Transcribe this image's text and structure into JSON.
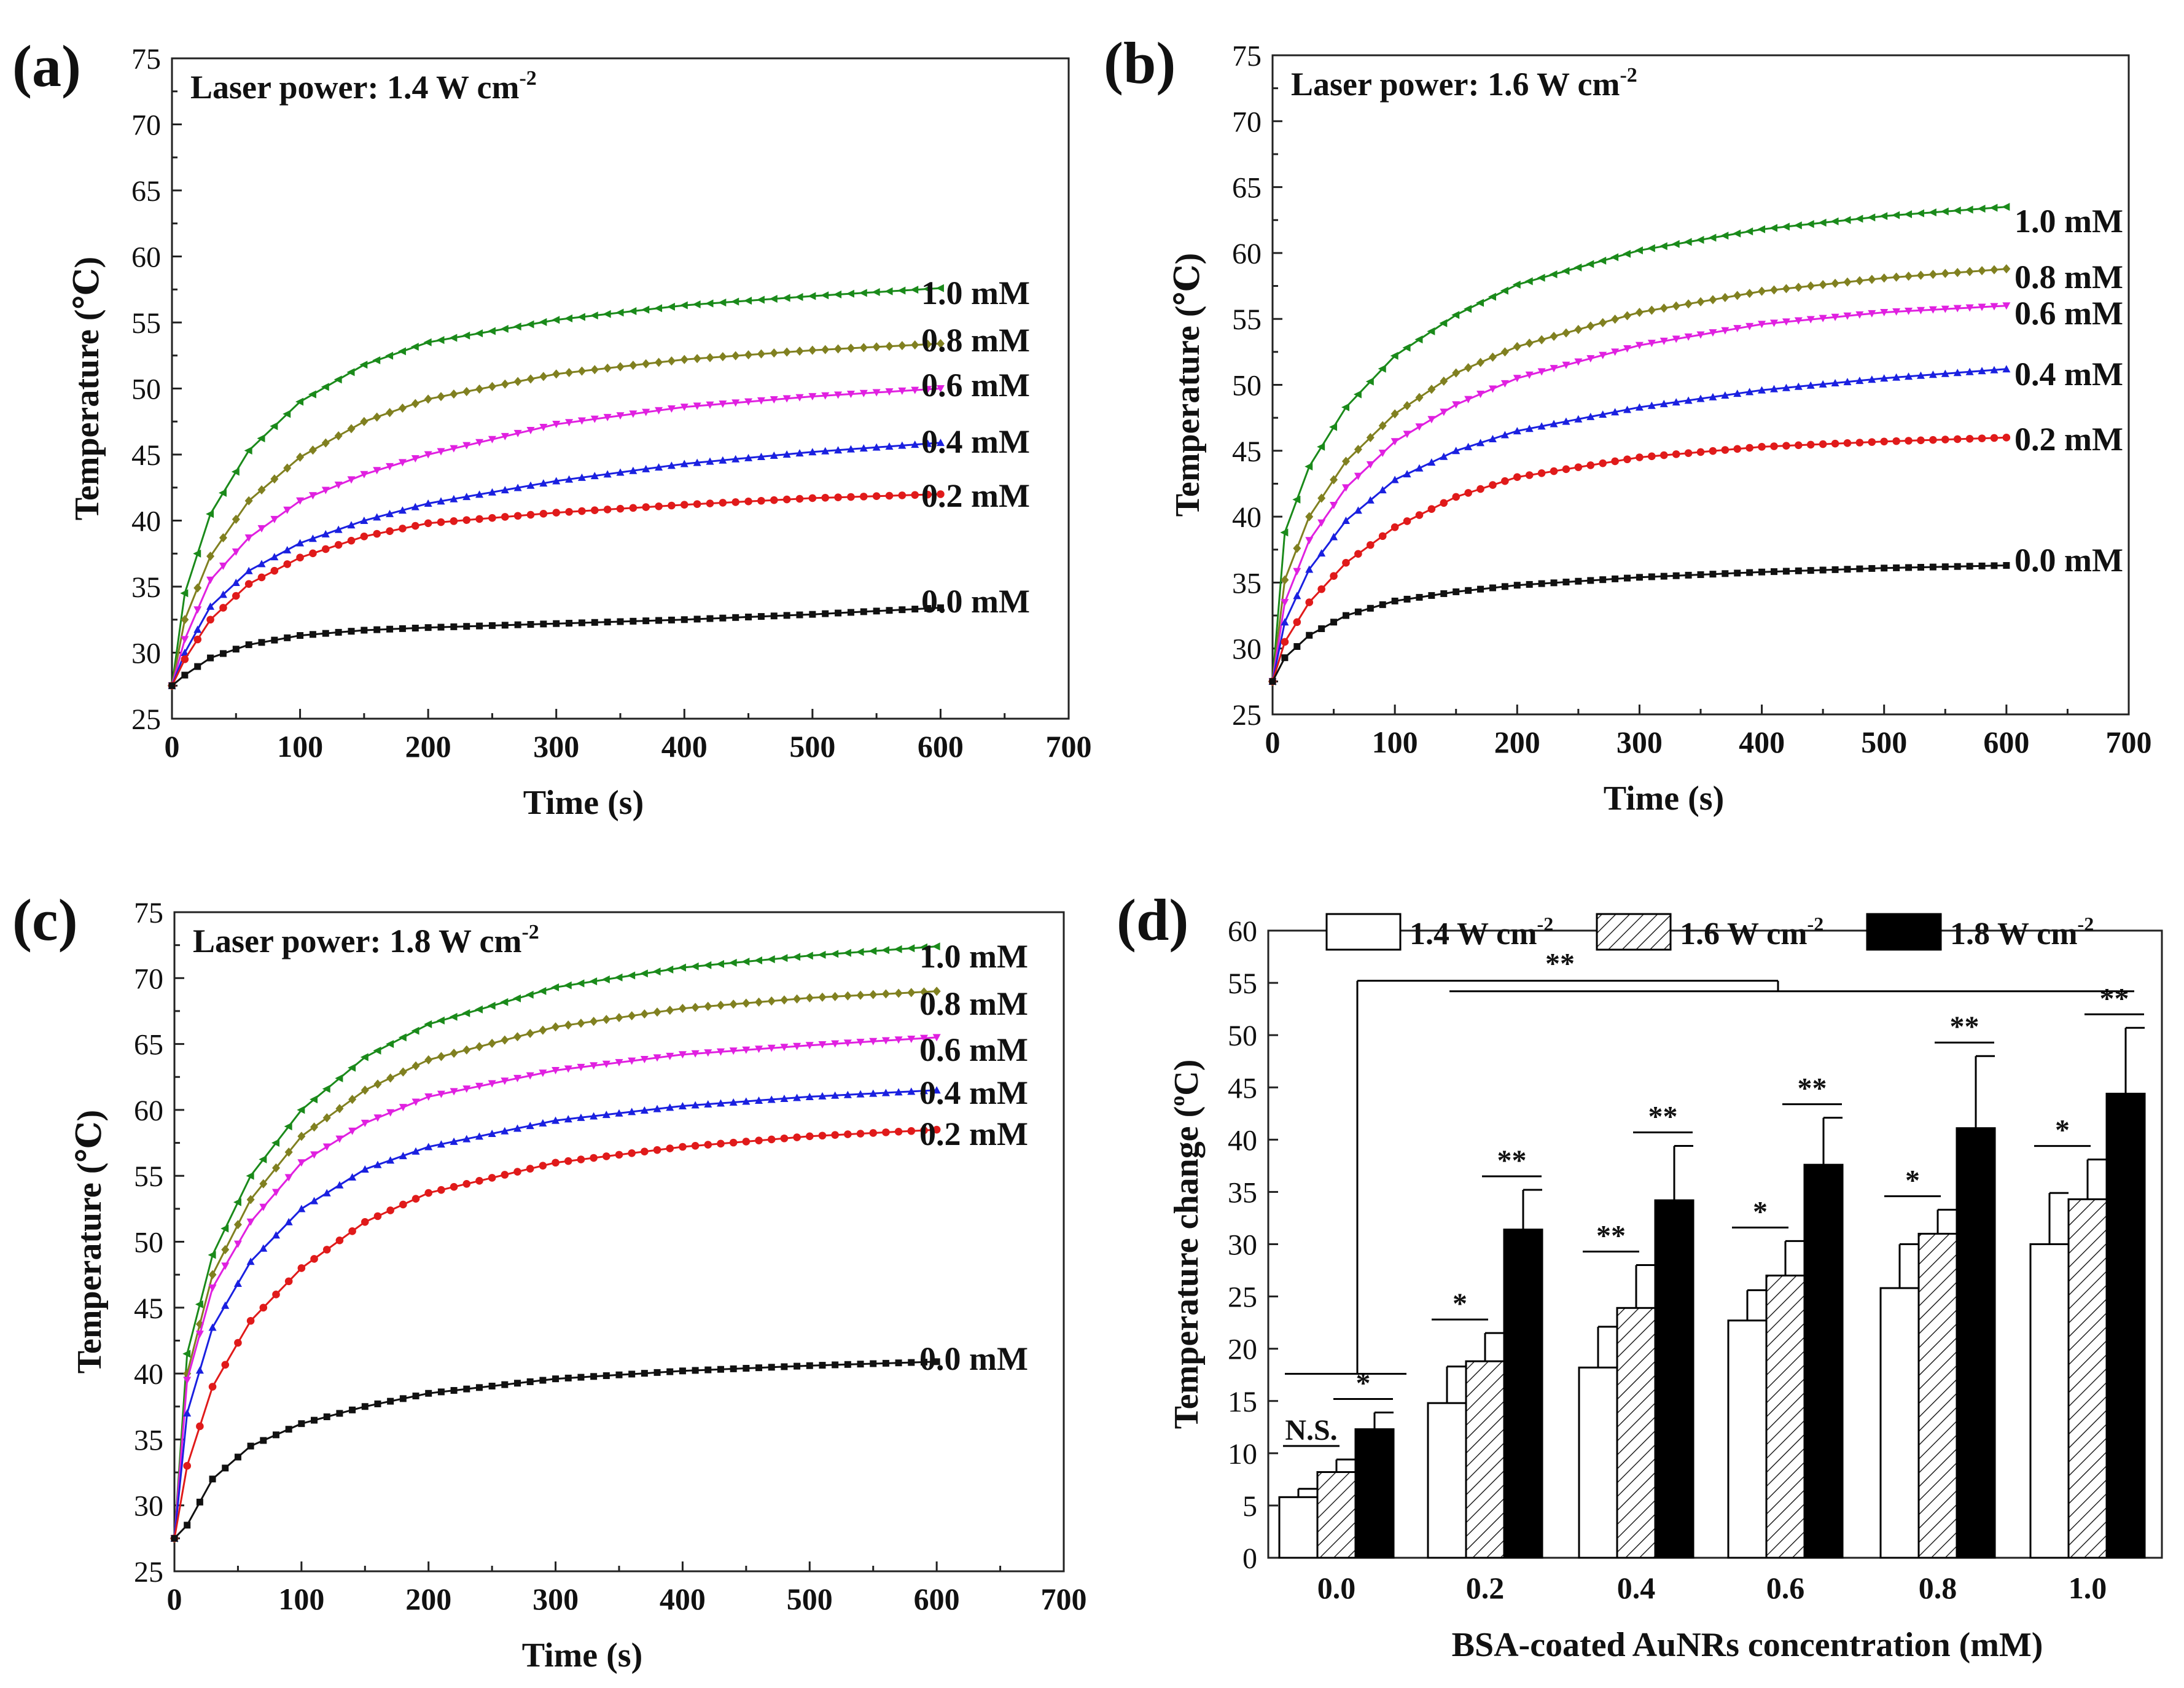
{
  "panels": [
    {
      "label": "(a)",
      "power_label": "Laser power: 1.4 W cm",
      "power_sup": "-2"
    },
    {
      "label": "(b)",
      "power_label": "Laser power: 1.6 W cm",
      "power_sup": "-2"
    },
    {
      "label": "(c)",
      "power_label": "Laser power: 1.8 W cm",
      "power_sup": "-2"
    },
    {
      "label": "(d)"
    }
  ],
  "line_axes": {
    "xlabel": "Time (s)",
    "ylabel": "Temperature (℃)",
    "xlim": [
      0,
      700
    ],
    "ylim": [
      25,
      75
    ],
    "xticks": [
      "0",
      "100",
      "200",
      "300",
      "400",
      "500",
      "600",
      "700"
    ],
    "yticks": [
      "25",
      "30",
      "35",
      "40",
      "45",
      "50",
      "55",
      "60",
      "65",
      "70",
      "75"
    ]
  },
  "bar_axes": {
    "xlabel": "BSA-coated AuNRs concentration (mM)",
    "ylabel_main": "Temperature change (",
    "ylabel_sup": "o",
    "ylabel_end": "C)",
    "ylim": [
      0,
      60
    ],
    "yticks": [
      "0",
      "5",
      "10",
      "15",
      "20",
      "25",
      "30",
      "35",
      "40",
      "45",
      "50",
      "55",
      "60"
    ]
  },
  "bar_legend": [
    {
      "name": "1.4 W cm",
      "sup": "-2"
    },
    {
      "name": "1.6 W cm",
      "sup": "-2"
    },
    {
      "name": "1.8 W cm",
      "sup": "-2"
    }
  ],
  "series_labels": [
    "1.0 mM",
    "0.8 mM",
    "0.6 mM",
    "0.4 mM",
    "0.2 mM",
    "0.0 mM"
  ],
  "sig_labels": {
    "ns": "N.S.",
    "one": "*",
    "two": "**"
  },
  "colors": {
    "c1_0": "#1a8a1a",
    "c0_8": "#808020",
    "c0_6": "#e020e0",
    "c0_4": "#1a20e0",
    "c0_2": "#e01a1a",
    "c0_0": "#111111"
  },
  "chart_data": [
    {
      "type": "line",
      "title": "Laser power: 1.4 W cm-2",
      "xlabel": "Time (s)",
      "ylabel": "Temperature (℃)",
      "xlim": [
        0,
        700
      ],
      "ylim": [
        25,
        75
      ],
      "x": [
        0,
        10,
        30,
        60,
        100,
        150,
        200,
        300,
        400,
        500,
        600
      ],
      "series": [
        {
          "name": "1.0 mM",
          "values": [
            27.5,
            34.5,
            40.5,
            45.3,
            49.0,
            51.8,
            53.5,
            55.2,
            56.3,
            57.0,
            57.6
          ]
        },
        {
          "name": "0.8 mM",
          "values": [
            27.5,
            32.5,
            37.3,
            41.5,
            44.8,
            47.5,
            49.2,
            51.1,
            52.2,
            52.9,
            53.4
          ]
        },
        {
          "name": "0.6 mM",
          "values": [
            27.5,
            31.0,
            35.5,
            38.7,
            41.5,
            43.5,
            45.0,
            47.3,
            48.6,
            49.4,
            50.0
          ]
        },
        {
          "name": "0.4 mM",
          "values": [
            27.5,
            30.0,
            33.5,
            36.2,
            38.3,
            40.0,
            41.3,
            43.0,
            44.3,
            45.2,
            45.9
          ]
        },
        {
          "name": "0.2 mM",
          "values": [
            27.5,
            29.5,
            32.5,
            35.2,
            37.2,
            38.8,
            39.8,
            40.6,
            41.2,
            41.7,
            42.0
          ]
        },
        {
          "name": "0.0 mM",
          "values": [
            27.5,
            28.3,
            29.6,
            30.6,
            31.3,
            31.7,
            31.9,
            32.2,
            32.5,
            32.9,
            33.4
          ]
        }
      ]
    },
    {
      "type": "line",
      "title": "Laser power: 1.6 W cm-2",
      "xlabel": "Time (s)",
      "ylabel": "Temperature (℃)",
      "xlim": [
        0,
        700
      ],
      "ylim": [
        25,
        75
      ],
      "x": [
        0,
        10,
        30,
        60,
        100,
        150,
        200,
        300,
        400,
        500,
        600
      ],
      "series": [
        {
          "name": "1.0 mM",
          "values": [
            27.5,
            38.8,
            43.8,
            48.3,
            52.2,
            55.3,
            57.6,
            60.2,
            61.8,
            62.8,
            63.5
          ]
        },
        {
          "name": "0.8 mM",
          "values": [
            27.5,
            35.2,
            40.0,
            44.2,
            47.8,
            50.9,
            52.9,
            55.5,
            57.1,
            58.1,
            58.8
          ]
        },
        {
          "name": "0.6 mM",
          "values": [
            27.5,
            33.5,
            38.2,
            42.2,
            45.7,
            48.5,
            50.5,
            53.0,
            54.6,
            55.5,
            56.0
          ]
        },
        {
          "name": "0.4 mM",
          "values": [
            27.5,
            32.0,
            36.0,
            39.7,
            42.8,
            45.0,
            46.5,
            48.3,
            49.6,
            50.5,
            51.2
          ]
        },
        {
          "name": "0.2 mM",
          "values": [
            27.5,
            30.5,
            33.5,
            36.5,
            39.2,
            41.5,
            43.0,
            44.5,
            45.3,
            45.7,
            46.0
          ]
        },
        {
          "name": "0.0 mM",
          "values": [
            27.5,
            29.3,
            31.0,
            32.5,
            33.6,
            34.3,
            34.8,
            35.4,
            35.8,
            36.1,
            36.3
          ]
        }
      ]
    },
    {
      "type": "line",
      "title": "Laser power: 1.8 W cm-2",
      "xlabel": "Time (s)",
      "ylabel": "Temperature (℃)",
      "xlim": [
        0,
        700
      ],
      "ylim": [
        25,
        75
      ],
      "x": [
        0,
        10,
        30,
        60,
        100,
        150,
        200,
        300,
        400,
        500,
        600
      ],
      "series": [
        {
          "name": "1.0 mM",
          "values": [
            27.5,
            41.5,
            49.0,
            55.0,
            60.0,
            64.0,
            66.5,
            69.3,
            70.8,
            71.7,
            72.4
          ]
        },
        {
          "name": "0.8 mM",
          "values": [
            27.5,
            40.0,
            47.5,
            53.2,
            58.0,
            61.5,
            63.8,
            66.3,
            67.7,
            68.5,
            69.0
          ]
        },
        {
          "name": "0.6 mM",
          "values": [
            27.5,
            39.5,
            46.5,
            51.5,
            56.0,
            59.0,
            61.0,
            63.0,
            64.2,
            64.9,
            65.5
          ]
        },
        {
          "name": "0.4 mM",
          "values": [
            27.5,
            37.0,
            43.5,
            48.5,
            52.5,
            55.5,
            57.2,
            59.2,
            60.3,
            61.0,
            61.5
          ]
        },
        {
          "name": "0.2 mM",
          "values": [
            27.5,
            33.0,
            39.0,
            44.0,
            48.0,
            51.5,
            53.7,
            56.0,
            57.2,
            58.0,
            58.5
          ]
        },
        {
          "name": "0.0 mM",
          "values": [
            27.5,
            28.5,
            32.0,
            34.5,
            36.2,
            37.5,
            38.5,
            39.6,
            40.2,
            40.6,
            40.9
          ]
        }
      ]
    },
    {
      "type": "bar",
      "xlabel": "BSA-coated AuNRs concentration (mM)",
      "ylabel": "Temperature change (oC)",
      "ylim": [
        0,
        60
      ],
      "categories": [
        "0.0",
        "0.2",
        "0.4",
        "0.6",
        "0.8",
        "1.0"
      ],
      "series": [
        {
          "name": "1.4 W cm-2",
          "values": [
            5.8,
            14.8,
            18.2,
            22.7,
            25.8,
            30.0
          ],
          "errors": [
            0.8,
            3.5,
            3.9,
            2.9,
            4.2,
            4.9
          ]
        },
        {
          "name": "1.6 W cm-2",
          "values": [
            8.2,
            18.8,
            23.9,
            27.0,
            31.0,
            34.3
          ],
          "errors": [
            1.2,
            2.7,
            4.1,
            3.3,
            2.3,
            3.8
          ]
        },
        {
          "name": "1.8 W cm-2",
          "values": [
            12.3,
            31.4,
            34.2,
            37.6,
            41.1,
            44.4
          ],
          "errors": [
            1.6,
            3.8,
            5.2,
            4.5,
            6.9,
            6.3
          ]
        }
      ],
      "significance": [
        {
          "category": "0.0",
          "pair": "1.4-1.6",
          "label": "N.S."
        },
        {
          "category": "0.0",
          "pair": "1.6-1.8",
          "label": "*"
        },
        {
          "category": "0.2",
          "pair": "1.4-1.6",
          "label": "*"
        },
        {
          "category": "0.2",
          "pair": "1.6-1.8",
          "label": "**"
        },
        {
          "category": "0.4",
          "pair": "1.4-1.6",
          "label": "**"
        },
        {
          "category": "0.4",
          "pair": "1.6-1.8",
          "label": "**"
        },
        {
          "category": "0.6",
          "pair": "1.4-1.6",
          "label": "*"
        },
        {
          "category": "0.6",
          "pair": "1.6-1.8",
          "label": "**"
        },
        {
          "category": "0.8",
          "pair": "1.4-1.6",
          "label": "*"
        },
        {
          "category": "0.8",
          "pair": "1.6-1.8",
          "label": "**"
        },
        {
          "category": "1.0",
          "pair": "1.4-1.6",
          "label": "*"
        },
        {
          "category": "1.0",
          "pair": "1.6-1.8",
          "label": "**"
        },
        {
          "category": "0.0 vs 0.2-1.0",
          "pair": "group",
          "label": "**"
        }
      ]
    }
  ]
}
